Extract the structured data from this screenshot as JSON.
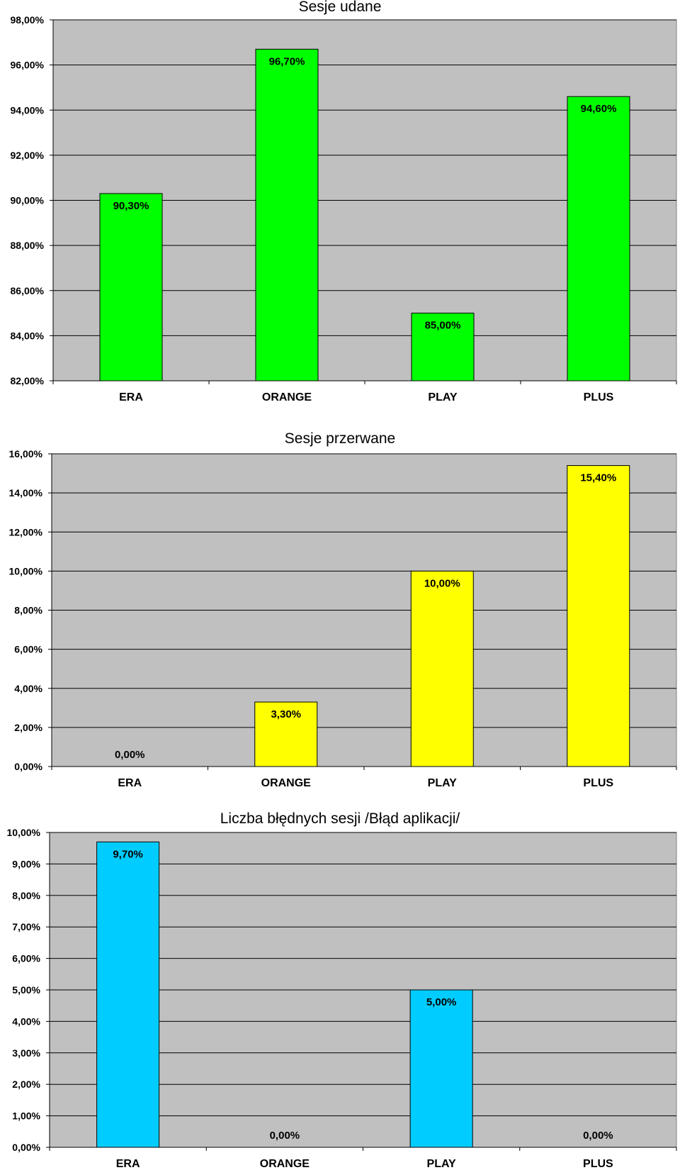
{
  "chart_data": [
    {
      "type": "bar",
      "title": "Sesje udane",
      "categories": [
        "ERA",
        "ORANGE",
        "PLAY",
        "PLUS"
      ],
      "values": [
        90.3,
        96.7,
        85.0,
        94.6
      ],
      "value_labels": [
        "90,30%",
        "96,70%",
        "85,00%",
        "94,60%"
      ],
      "ylim": [
        82,
        98
      ],
      "yticks": [
        82,
        84,
        86,
        88,
        90,
        92,
        94,
        96,
        98
      ],
      "ytick_labels": [
        "82,00%",
        "84,00%",
        "86,00%",
        "88,00%",
        "90,00%",
        "92,00%",
        "94,00%",
        "96,00%",
        "98,00%"
      ],
      "xlabel": "",
      "ylabel": "",
      "grid": true,
      "plot_bg": "#c0c0c0",
      "bar_color": "#00ff00"
    },
    {
      "type": "bar",
      "title": "Sesje przerwane",
      "categories": [
        "ERA",
        "ORANGE",
        "PLAY",
        "PLUS"
      ],
      "values": [
        0.0,
        3.3,
        10.0,
        15.4
      ],
      "value_labels": [
        "0,00%",
        "3,30%",
        "10,00%",
        "15,40%"
      ],
      "ylim": [
        0,
        16
      ],
      "yticks": [
        0,
        2,
        4,
        6,
        8,
        10,
        12,
        14,
        16
      ],
      "ytick_labels": [
        "0,00%",
        "2,00%",
        "4,00%",
        "6,00%",
        "8,00%",
        "10,00%",
        "12,00%",
        "14,00%",
        "16,00%"
      ],
      "xlabel": "",
      "ylabel": "",
      "grid": true,
      "plot_bg": "#c0c0c0",
      "bar_color": "#ffff00"
    },
    {
      "type": "bar",
      "title": "Liczba błędnych sesji /Błąd aplikacji/",
      "categories": [
        "ERA",
        "ORANGE",
        "PLAY",
        "PLUS"
      ],
      "values": [
        9.7,
        0.0,
        5.0,
        0.0
      ],
      "value_labels": [
        "9,70%",
        "0,00%",
        "5,00%",
        "0,00%"
      ],
      "ylim": [
        0,
        10
      ],
      "yticks": [
        0,
        1,
        2,
        3,
        4,
        5,
        6,
        7,
        8,
        9,
        10
      ],
      "ytick_labels": [
        "0,00%",
        "1,00%",
        "2,00%",
        "3,00%",
        "4,00%",
        "5,00%",
        "6,00%",
        "7,00%",
        "8,00%",
        "9,00%",
        "10,00%"
      ],
      "xlabel": "",
      "ylabel": "",
      "grid": true,
      "plot_bg": "#c0c0c0",
      "bar_color": "#00ccff"
    }
  ]
}
